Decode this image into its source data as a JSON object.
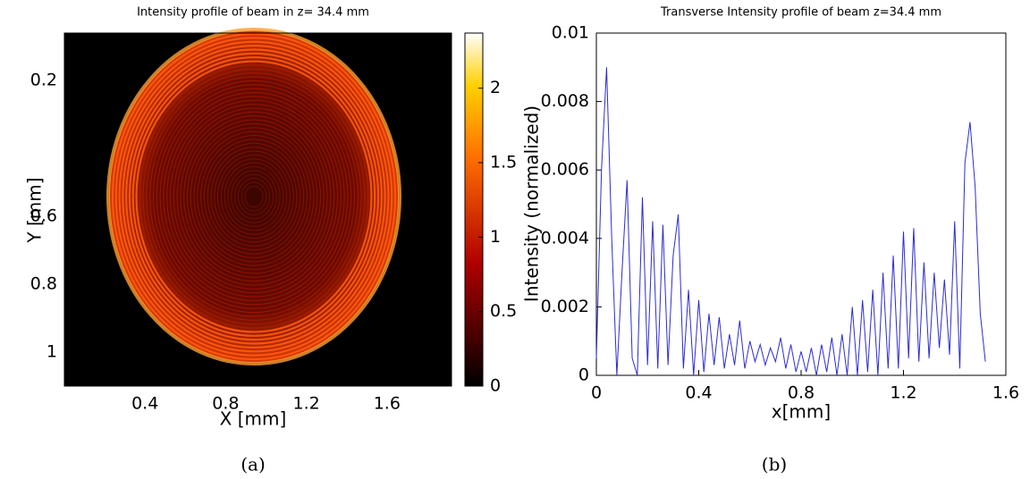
{
  "chart_data": [
    {
      "type": "heatmap",
      "title": "Intensity profile of beam in z= 34.4 mm",
      "xlabel": "X [mm]",
      "ylabel": "Y [mm]",
      "caption": "(a)",
      "xlim": [
        0,
        1.92
      ],
      "xticks": [
        0.4,
        0.8,
        1.2,
        1.6
      ],
      "ylim": [
        0.06,
        1.1
      ],
      "yticks": [
        0.2,
        0.6,
        0.8,
        1
      ],
      "clim": [
        0,
        2.37
      ],
      "colorbar_ticks": [
        0,
        0.5,
        1,
        1.5,
        2
      ]
    },
    {
      "type": "line",
      "title": "Transverse Intensity profile of beam z=34.4 mm",
      "xlabel": "x[mm]",
      "ylabel": "Intensity (normalized)",
      "caption": "(b)",
      "xlim": [
        0,
        1.6
      ],
      "xticks": [
        0,
        0.4,
        0.8,
        1.2,
        1.6
      ],
      "ylim": [
        0,
        0.01
      ],
      "yticks": [
        0,
        0.002,
        0.004,
        0.006,
        0.008,
        0.01
      ],
      "color": "#2b2bd6",
      "x": [
        0,
        0.02,
        0.04,
        0.06,
        0.08,
        0.1,
        0.12,
        0.14,
        0.16,
        0.18,
        0.2,
        0.22,
        0.24,
        0.26,
        0.28,
        0.3,
        0.32,
        0.34,
        0.36,
        0.38,
        0.4,
        0.42,
        0.44,
        0.46,
        0.48,
        0.5,
        0.52,
        0.54,
        0.56,
        0.58,
        0.6,
        0.62,
        0.64,
        0.66,
        0.68,
        0.7,
        0.72,
        0.74,
        0.76,
        0.78,
        0.8,
        0.82,
        0.84,
        0.86,
        0.88,
        0.9,
        0.92,
        0.94,
        0.96,
        0.98,
        1,
        1.02,
        1.04,
        1.06,
        1.08,
        1.1,
        1.12,
        1.14,
        1.16,
        1.18,
        1.2,
        1.22,
        1.24,
        1.26,
        1.28,
        1.3,
        1.32,
        1.34,
        1.36,
        1.38,
        1.4,
        1.42,
        1.44,
        1.46,
        1.48,
        1.5,
        1.52
      ],
      "values": [
        0.0005,
        0.006,
        0.009,
        0.004,
        0,
        0.003,
        0.0057,
        0.0005,
        0,
        0.0052,
        0.0003,
        0.0045,
        0.0002,
        0.0044,
        0.0003,
        0.0035,
        0.0047,
        0.0002,
        0.0025,
        0,
        0.0022,
        0.0001,
        0.0018,
        0.0003,
        0.0017,
        0.0002,
        0.0012,
        0.0003,
        0.0016,
        0.0002,
        0.001,
        0.0004,
        0.0009,
        0.0003,
        0.0008,
        0.0004,
        0.0011,
        0.0002,
        0.0009,
        0.0001,
        0.0007,
        0.0001,
        0.0008,
        0,
        0.0009,
        0.0001,
        0.0011,
        0,
        0.0012,
        0,
        0.002,
        0,
        0.0022,
        0.0001,
        0.0025,
        0,
        0.003,
        0.0002,
        0.0035,
        0.0002,
        0.0042,
        0.0005,
        0.0043,
        0.0004,
        0.0033,
        0.0005,
        0.003,
        0.0008,
        0.0028,
        0.0006,
        0.0045,
        0.0002,
        0.0062,
        0.0074,
        0.0055,
        0.0018,
        0.0004
      ]
    }
  ]
}
